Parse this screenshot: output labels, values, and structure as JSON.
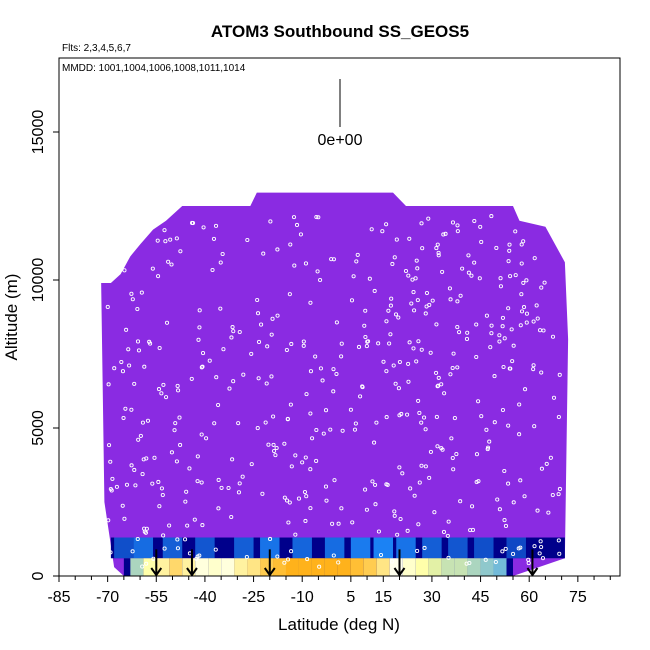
{
  "chart_data": {
    "type": "heatmap",
    "title": "ATOM3 Southbound SS_GEOS5",
    "subtitle_flights": "Flts: 2,3,4,5,6,7",
    "subtitle_dates": "MMDD: 1001,1004,1006,1008,1011,1014",
    "scale_label": "0e+00",
    "xlabel": "Latitude (deg N)",
    "ylabel": "Altitude (m)",
    "xlim": [
      -85,
      88
    ],
    "ylim": [
      0,
      17500
    ],
    "x_ticks": [
      -85,
      -70,
      -55,
      -40,
      -25,
      -10,
      5,
      15,
      30,
      45,
      60,
      75
    ],
    "y_ticks": [
      0,
      5000,
      10000,
      15000
    ],
    "background_color": "#8A2BE2",
    "colors": {
      "background": "#8A2BE2",
      "low": "#00008B",
      "mid": "#1E90FF",
      "high": "#FFA500",
      "peak": "#FFFF99",
      "points": "#FFFFFF",
      "arrows": "#000000"
    },
    "ceiling_profile": [
      {
        "lat": -69,
        "alt": 9900
      },
      {
        "lat": -66,
        "alt": 10200
      },
      {
        "lat": -63,
        "alt": 10800
      },
      {
        "lat": -60,
        "alt": 11200
      },
      {
        "lat": -56,
        "alt": 11700
      },
      {
        "lat": -52,
        "alt": 12000
      },
      {
        "lat": -47,
        "alt": 12500
      },
      {
        "lat": -26,
        "alt": 12500
      },
      {
        "lat": -24,
        "alt": 12950
      },
      {
        "lat": 18,
        "alt": 12950
      },
      {
        "lat": 22,
        "alt": 12500
      },
      {
        "lat": 55,
        "alt": 12500
      },
      {
        "lat": 57,
        "alt": 12000
      },
      {
        "lat": 65,
        "alt": 11800
      },
      {
        "lat": 68,
        "alt": 11200
      },
      {
        "lat": 71,
        "alt": 10600
      }
    ],
    "high_values_band": [
      {
        "lat": -61,
        "value": 0.25
      },
      {
        "lat": -57,
        "value": 0.45
      },
      {
        "lat": -53,
        "value": 0.7
      },
      {
        "lat": -49,
        "value": 0.8
      },
      {
        "lat": -45,
        "value": 0.7
      },
      {
        "lat": -41,
        "value": 0.6
      },
      {
        "lat": -37,
        "value": 0.55
      },
      {
        "lat": -33,
        "value": 0.6
      },
      {
        "lat": -29,
        "value": 0.7
      },
      {
        "lat": -25,
        "value": 0.75
      },
      {
        "lat": -21,
        "value": 0.85
      },
      {
        "lat": -17,
        "value": 0.9
      },
      {
        "lat": -13,
        "value": 0.95
      },
      {
        "lat": -9,
        "value": 0.95
      },
      {
        "lat": -5,
        "value": 0.95
      },
      {
        "lat": -1,
        "value": 0.95
      },
      {
        "lat": 3,
        "value": 0.95
      },
      {
        "lat": 7,
        "value": 0.9
      },
      {
        "lat": 11,
        "value": 0.85
      },
      {
        "lat": 15,
        "value": 0.75
      },
      {
        "lat": 19,
        "value": 0.65
      },
      {
        "lat": 23,
        "value": 0.55
      },
      {
        "lat": 27,
        "value": 0.45
      },
      {
        "lat": 31,
        "value": 0.35
      },
      {
        "lat": 35,
        "value": 0.3
      },
      {
        "lat": 39,
        "value": 0.3
      },
      {
        "lat": 43,
        "value": 0.25
      },
      {
        "lat": 47,
        "value": 0.2
      },
      {
        "lat": 51,
        "value": 0.15
      }
    ],
    "mid_values_band": [
      {
        "lat": -65,
        "value": 0.2
      },
      {
        "lat": -59,
        "value": 0.4
      },
      {
        "lat": -50,
        "value": 0.3
      },
      {
        "lat": -40,
        "value": 0.25
      },
      {
        "lat": -28,
        "value": 0.3
      },
      {
        "lat": -20,
        "value": 0.45
      },
      {
        "lat": -10,
        "value": 0.35
      },
      {
        "lat": 0,
        "value": 0.4
      },
      {
        "lat": 8,
        "value": 0.5
      },
      {
        "lat": 15,
        "value": 0.55
      },
      {
        "lat": 22,
        "value": 0.45
      },
      {
        "lat": 30,
        "value": 0.3
      },
      {
        "lat": 38,
        "value": 0.25
      },
      {
        "lat": 46,
        "value": 0.2
      },
      {
        "lat": 56,
        "value": 0.15
      }
    ],
    "arrow_lats": [
      -55,
      -44,
      -20,
      20,
      61
    ]
  }
}
